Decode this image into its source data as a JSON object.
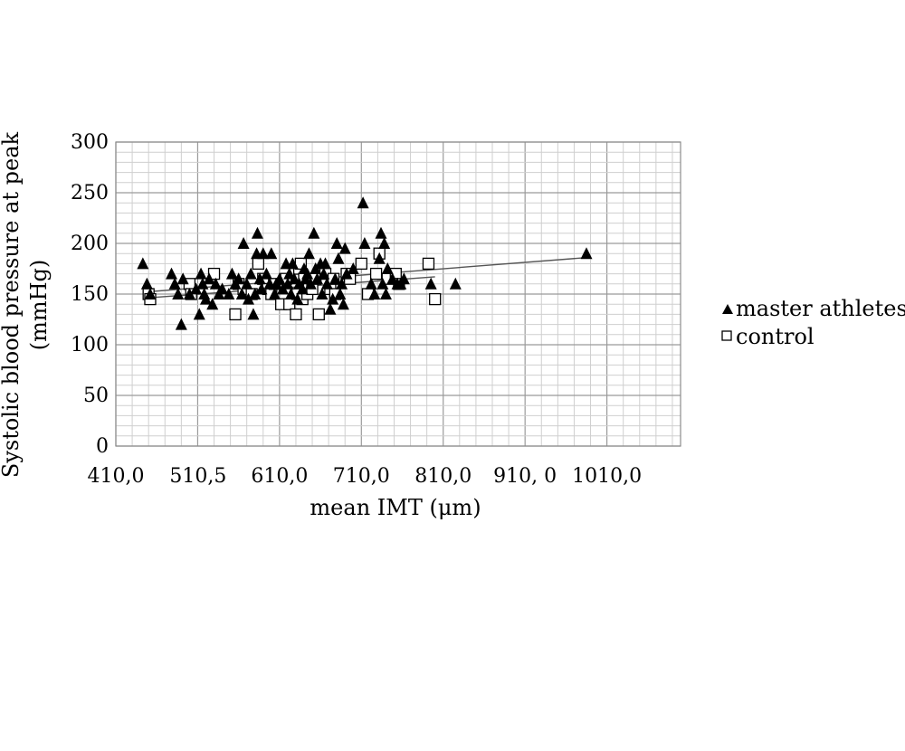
{
  "chart_data": {
    "type": "scatter",
    "xlabel": "mean IMT (μm)",
    "ylabel_line1": "Systolic blood pressure at peak",
    "ylabel_line2": "(mmHg)",
    "xlim": [
      410,
      1100
    ],
    "ylim": [
      0,
      300
    ],
    "grid": true,
    "legend_position": "right",
    "x_tick_values": [
      410,
      510.5,
      610,
      710,
      810,
      910,
      1010
    ],
    "x_tick_labels": [
      "410,0",
      "510,5",
      "610,0",
      "710,0",
      "810,0",
      "910, 0",
      "1010,0"
    ],
    "y_tick_values": [
      0,
      50,
      100,
      150,
      200,
      250,
      300
    ],
    "y_tick_labels": [
      "0",
      "50",
      "100",
      "150",
      "200",
      "250",
      "300"
    ],
    "series": [
      {
        "name": "master athletes",
        "marker": "triangle",
        "color": "#000000",
        "trendline": [
          [
            445,
            152
          ],
          [
            985,
            186
          ]
        ],
        "points": [
          [
            443,
            180
          ],
          [
            448,
            160
          ],
          [
            452,
            150
          ],
          [
            478,
            170
          ],
          [
            482,
            160
          ],
          [
            486,
            150
          ],
          [
            490,
            120
          ],
          [
            492,
            165
          ],
          [
            500,
            150
          ],
          [
            508,
            155
          ],
          [
            512,
            130
          ],
          [
            514,
            170
          ],
          [
            516,
            160
          ],
          [
            518,
            150
          ],
          [
            520,
            145
          ],
          [
            524,
            165
          ],
          [
            528,
            140
          ],
          [
            532,
            160
          ],
          [
            536,
            150
          ],
          [
            540,
            155
          ],
          [
            548,
            150
          ],
          [
            552,
            170
          ],
          [
            556,
            160
          ],
          [
            560,
            165
          ],
          [
            564,
            150
          ],
          [
            566,
            200
          ],
          [
            570,
            160
          ],
          [
            572,
            145
          ],
          [
            575,
            170
          ],
          [
            578,
            130
          ],
          [
            580,
            150
          ],
          [
            582,
            190
          ],
          [
            583,
            210
          ],
          [
            586,
            165
          ],
          [
            588,
            155
          ],
          [
            590,
            190
          ],
          [
            594,
            170
          ],
          [
            598,
            160
          ],
          [
            600,
            190
          ],
          [
            604,
            150
          ],
          [
            606,
            160
          ],
          [
            610,
            165
          ],
          [
            614,
            155
          ],
          [
            618,
            180
          ],
          [
            620,
            160
          ],
          [
            622,
            170
          ],
          [
            624,
            150
          ],
          [
            626,
            180
          ],
          [
            628,
            165
          ],
          [
            632,
            145
          ],
          [
            634,
            160
          ],
          [
            638,
            155
          ],
          [
            640,
            175
          ],
          [
            642,
            165
          ],
          [
            644,
            170
          ],
          [
            646,
            190
          ],
          [
            648,
            160
          ],
          [
            652,
            210
          ],
          [
            654,
            175
          ],
          [
            656,
            165
          ],
          [
            660,
            180
          ],
          [
            662,
            150
          ],
          [
            664,
            170
          ],
          [
            666,
            180
          ],
          [
            668,
            160
          ],
          [
            672,
            135
          ],
          [
            675,
            145
          ],
          [
            678,
            165
          ],
          [
            680,
            200
          ],
          [
            682,
            185
          ],
          [
            684,
            150
          ],
          [
            686,
            160
          ],
          [
            688,
            140
          ],
          [
            690,
            195
          ],
          [
            692,
            170
          ],
          [
            700,
            175
          ],
          [
            712,
            240
          ],
          [
            714,
            200
          ],
          [
            722,
            160
          ],
          [
            726,
            150
          ],
          [
            732,
            185
          ],
          [
            734,
            210
          ],
          [
            736,
            160
          ],
          [
            738,
            200
          ],
          [
            740,
            150
          ],
          [
            742,
            175
          ],
          [
            748,
            165
          ],
          [
            754,
            160
          ],
          [
            758,
            160
          ],
          [
            762,
            165
          ],
          [
            795,
            160
          ],
          [
            825,
            160
          ],
          [
            985,
            190
          ]
        ]
      },
      {
        "name": "control",
        "marker": "square",
        "color": "#000000",
        "trendline": [
          [
            445,
            146
          ],
          [
            800,
            167
          ]
        ],
        "points": [
          [
            450,
            150
          ],
          [
            452,
            145
          ],
          [
            500,
            160
          ],
          [
            502,
            150
          ],
          [
            530,
            170
          ],
          [
            556,
            130
          ],
          [
            560,
            160
          ],
          [
            566,
            155
          ],
          [
            576,
            150
          ],
          [
            584,
            180
          ],
          [
            590,
            165
          ],
          [
            596,
            155
          ],
          [
            600,
            150
          ],
          [
            604,
            160
          ],
          [
            612,
            140
          ],
          [
            618,
            165
          ],
          [
            622,
            140
          ],
          [
            630,
            130
          ],
          [
            632,
            150
          ],
          [
            634,
            175
          ],
          [
            636,
            180
          ],
          [
            638,
            145
          ],
          [
            640,
            165
          ],
          [
            644,
            150
          ],
          [
            646,
            160
          ],
          [
            650,
            155
          ],
          [
            654,
            165
          ],
          [
            658,
            130
          ],
          [
            666,
            170
          ],
          [
            672,
            155
          ],
          [
            676,
            165
          ],
          [
            678,
            150
          ],
          [
            692,
            170
          ],
          [
            696,
            165
          ],
          [
            710,
            180
          ],
          [
            718,
            150
          ],
          [
            728,
            170
          ],
          [
            732,
            190
          ],
          [
            742,
            165
          ],
          [
            752,
            170
          ],
          [
            756,
            160
          ],
          [
            792,
            180
          ],
          [
            800,
            145
          ]
        ]
      }
    ]
  }
}
